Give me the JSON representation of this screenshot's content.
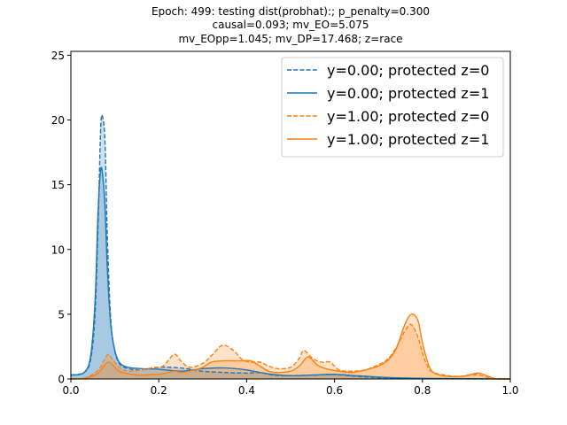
{
  "chart_data": {
    "type": "area",
    "title_lines": [
      "Epoch: 499: testing dist(probhat):; p_penalty=0.300",
      "causal=0.093; mv_EO=5.075",
      "mv_EOpp=1.045; mv_DP=17.468; z=race"
    ],
    "xlabel": "",
    "ylabel": "",
    "xlim": [
      0.0,
      1.0
    ],
    "ylim": [
      0,
      25.3
    ],
    "xticks": [
      "0.0",
      "0.2",
      "0.4",
      "0.6",
      "0.8",
      "1.0"
    ],
    "yticks": [
      "0",
      "5",
      "10",
      "15",
      "20",
      "25"
    ],
    "legend_position": "top-right",
    "series": [
      {
        "name": "y=0.00; protected z=0",
        "color": "#1f77b4",
        "style": "dashed",
        "points": [
          [
            0,
            0.3
          ],
          [
            0.03,
            0.5
          ],
          [
            0.045,
            1.5
          ],
          [
            0.055,
            5
          ],
          [
            0.062,
            12
          ],
          [
            0.068,
            19.5
          ],
          [
            0.073,
            20.1
          ],
          [
            0.078,
            18
          ],
          [
            0.083,
            11
          ],
          [
            0.09,
            5
          ],
          [
            0.098,
            2.5
          ],
          [
            0.11,
            1.2
          ],
          [
            0.13,
            0.8
          ],
          [
            0.16,
            0.7
          ],
          [
            0.2,
            0.9
          ],
          [
            0.25,
            0.85
          ],
          [
            0.3,
            0.6
          ],
          [
            0.35,
            0.5
          ],
          [
            0.4,
            0.45
          ],
          [
            0.43,
            0.5
          ],
          [
            0.46,
            0.3
          ],
          [
            0.5,
            0.25
          ],
          [
            0.55,
            0.3
          ],
          [
            0.6,
            0.35
          ],
          [
            0.65,
            0.2
          ],
          [
            0.7,
            0.1
          ],
          [
            0.75,
            0.05
          ],
          [
            0.8,
            0.02
          ],
          [
            0.9,
            0.01
          ],
          [
            1.0,
            0.0
          ]
        ]
      },
      {
        "name": "y=0.00; protected z=1",
        "color": "#1f77b4",
        "style": "solid",
        "points": [
          [
            0,
            0.3
          ],
          [
            0.03,
            0.5
          ],
          [
            0.045,
            1.8
          ],
          [
            0.055,
            6
          ],
          [
            0.062,
            13
          ],
          [
            0.068,
            16.2
          ],
          [
            0.073,
            15.5
          ],
          [
            0.078,
            13
          ],
          [
            0.083,
            8.5
          ],
          [
            0.09,
            4.5
          ],
          [
            0.098,
            2.5
          ],
          [
            0.11,
            1.3
          ],
          [
            0.13,
            0.9
          ],
          [
            0.16,
            0.8
          ],
          [
            0.2,
            0.75
          ],
          [
            0.25,
            0.6
          ],
          [
            0.3,
            0.8
          ],
          [
            0.35,
            0.85
          ],
          [
            0.4,
            0.7
          ],
          [
            0.43,
            0.5
          ],
          [
            0.46,
            0.35
          ],
          [
            0.5,
            0.25
          ],
          [
            0.55,
            0.3
          ],
          [
            0.6,
            0.35
          ],
          [
            0.65,
            0.25
          ],
          [
            0.7,
            0.15
          ],
          [
            0.75,
            0.08
          ],
          [
            0.8,
            0.05
          ],
          [
            0.9,
            0.02
          ],
          [
            1.0,
            0.0
          ]
        ]
      },
      {
        "name": "y=1.00; protected z=0",
        "color": "#ff7f0e",
        "style": "dashed",
        "points": [
          [
            0,
            0.0
          ],
          [
            0.03,
            0.05
          ],
          [
            0.06,
            0.6
          ],
          [
            0.075,
            1.4
          ],
          [
            0.085,
            1.9
          ],
          [
            0.095,
            1.5
          ],
          [
            0.11,
            0.9
          ],
          [
            0.13,
            0.6
          ],
          [
            0.16,
            0.7
          ],
          [
            0.19,
            0.9
          ],
          [
            0.21,
            1.0
          ],
          [
            0.235,
            1.9
          ],
          [
            0.25,
            1.4
          ],
          [
            0.27,
            0.9
          ],
          [
            0.3,
            1.2
          ],
          [
            0.32,
            1.8
          ],
          [
            0.345,
            2.6
          ],
          [
            0.37,
            2.2
          ],
          [
            0.39,
            1.5
          ],
          [
            0.41,
            1.3
          ],
          [
            0.43,
            1.3
          ],
          [
            0.45,
            1.0
          ],
          [
            0.47,
            0.8
          ],
          [
            0.5,
            0.9
          ],
          [
            0.52,
            1.6
          ],
          [
            0.53,
            2.2
          ],
          [
            0.55,
            1.6
          ],
          [
            0.57,
            1.3
          ],
          [
            0.59,
            1.3
          ],
          [
            0.61,
            0.7
          ],
          [
            0.64,
            0.6
          ],
          [
            0.67,
            0.7
          ],
          [
            0.7,
            1.1
          ],
          [
            0.72,
            1.5
          ],
          [
            0.74,
            2.4
          ],
          [
            0.76,
            3.7
          ],
          [
            0.775,
            4.2
          ],
          [
            0.79,
            3.2
          ],
          [
            0.805,
            1.5
          ],
          [
            0.82,
            0.6
          ],
          [
            0.85,
            0.3
          ],
          [
            0.88,
            0.2
          ],
          [
            0.91,
            0.3
          ],
          [
            0.93,
            0.3
          ],
          [
            0.95,
            0.1
          ],
          [
            0.97,
            0.0
          ],
          [
            1.0,
            0.0
          ]
        ]
      },
      {
        "name": "y=1.00; protected z=1",
        "color": "#ff7f0e",
        "style": "solid",
        "points": [
          [
            0,
            0.0
          ],
          [
            0.03,
            0.05
          ],
          [
            0.06,
            0.4
          ],
          [
            0.075,
            1.0
          ],
          [
            0.085,
            1.3
          ],
          [
            0.095,
            1.1
          ],
          [
            0.11,
            0.6
          ],
          [
            0.13,
            0.4
          ],
          [
            0.16,
            0.3
          ],
          [
            0.19,
            0.35
          ],
          [
            0.21,
            0.4
          ],
          [
            0.235,
            0.6
          ],
          [
            0.25,
            0.5
          ],
          [
            0.27,
            0.6
          ],
          [
            0.3,
            0.9
          ],
          [
            0.32,
            1.3
          ],
          [
            0.345,
            1.4
          ],
          [
            0.37,
            1.4
          ],
          [
            0.39,
            1.4
          ],
          [
            0.41,
            1.4
          ],
          [
            0.43,
            1.0
          ],
          [
            0.45,
            0.6
          ],
          [
            0.47,
            0.5
          ],
          [
            0.5,
            0.6
          ],
          [
            0.52,
            1.0
          ],
          [
            0.54,
            1.7
          ],
          [
            0.56,
            1.1
          ],
          [
            0.58,
            0.8
          ],
          [
            0.61,
            0.6
          ],
          [
            0.64,
            0.5
          ],
          [
            0.67,
            0.7
          ],
          [
            0.7,
            1.0
          ],
          [
            0.72,
            1.4
          ],
          [
            0.74,
            2.3
          ],
          [
            0.76,
            4.2
          ],
          [
            0.775,
            5.0
          ],
          [
            0.79,
            4.5
          ],
          [
            0.8,
            2.8
          ],
          [
            0.815,
            1.0
          ],
          [
            0.83,
            0.4
          ],
          [
            0.86,
            0.2
          ],
          [
            0.89,
            0.2
          ],
          [
            0.91,
            0.35
          ],
          [
            0.93,
            0.45
          ],
          [
            0.95,
            0.2
          ],
          [
            0.97,
            0.0
          ],
          [
            1.0,
            0.0
          ]
        ]
      }
    ]
  }
}
